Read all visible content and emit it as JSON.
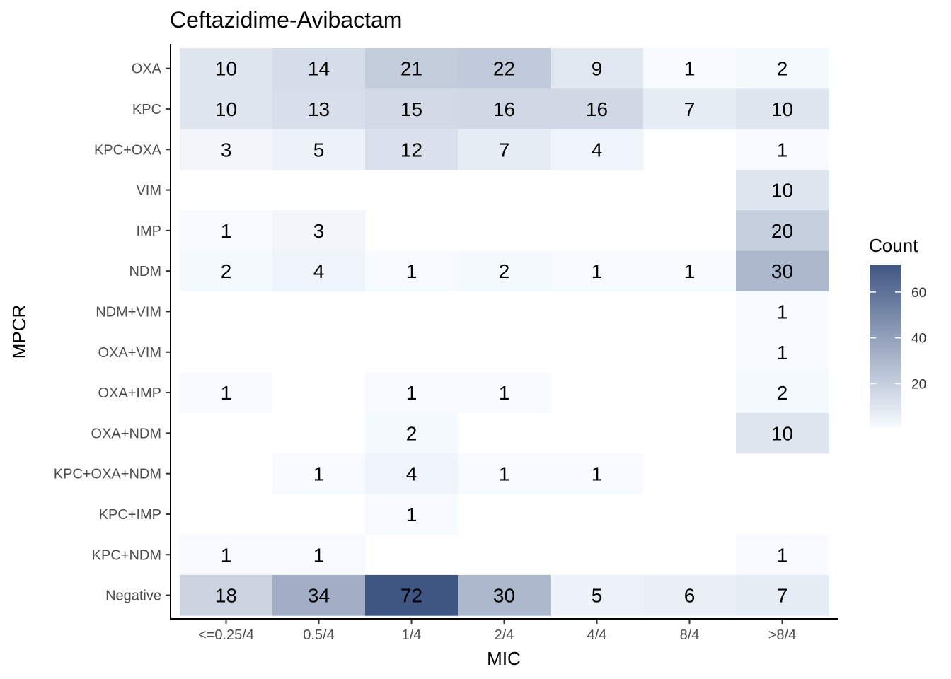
{
  "chart_data": {
    "type": "heatmap",
    "title": "Ceftazidime-Avibactam",
    "xlabel": "MIC",
    "ylabel": "MPCR",
    "x_categories": [
      "<=0.25/4",
      "0.5/4",
      "1/4",
      "2/4",
      "4/4",
      "8/4",
      ">8/4"
    ],
    "y_categories": [
      "OXA",
      "KPC",
      "KPC+OXA",
      "VIM",
      "IMP",
      "NDM",
      "NDM+VIM",
      "OXA+VIM",
      "OXA+IMP",
      "OXA+NDM",
      "KPC+OXA+NDM",
      "KPC+IMP",
      "KPC+NDM",
      "Negative"
    ],
    "values": [
      [
        10,
        14,
        21,
        22,
        9,
        1,
        2
      ],
      [
        10,
        13,
        15,
        16,
        16,
        7,
        10
      ],
      [
        3,
        5,
        12,
        7,
        4,
        null,
        1
      ],
      [
        null,
        null,
        null,
        null,
        null,
        null,
        10
      ],
      [
        1,
        3,
        null,
        null,
        null,
        null,
        20
      ],
      [
        2,
        4,
        1,
        2,
        1,
        1,
        30
      ],
      [
        null,
        null,
        null,
        null,
        null,
        null,
        1
      ],
      [
        null,
        null,
        null,
        null,
        null,
        null,
        1
      ],
      [
        1,
        null,
        1,
        1,
        null,
        null,
        2
      ],
      [
        null,
        null,
        2,
        null,
        null,
        null,
        10
      ],
      [
        null,
        1,
        4,
        1,
        1,
        null,
        null
      ],
      [
        null,
        null,
        1,
        null,
        null,
        null,
        null
      ],
      [
        1,
        1,
        null,
        null,
        null,
        null,
        1
      ],
      [
        18,
        34,
        72,
        30,
        5,
        6,
        7
      ]
    ],
    "legend": {
      "title": "Count",
      "ticks": [
        20,
        40,
        60
      ],
      "range": [
        1,
        72
      ],
      "low_color": "#f7fbff",
      "high_color": "#3f5682",
      "placement": "right"
    },
    "grid": false
  }
}
